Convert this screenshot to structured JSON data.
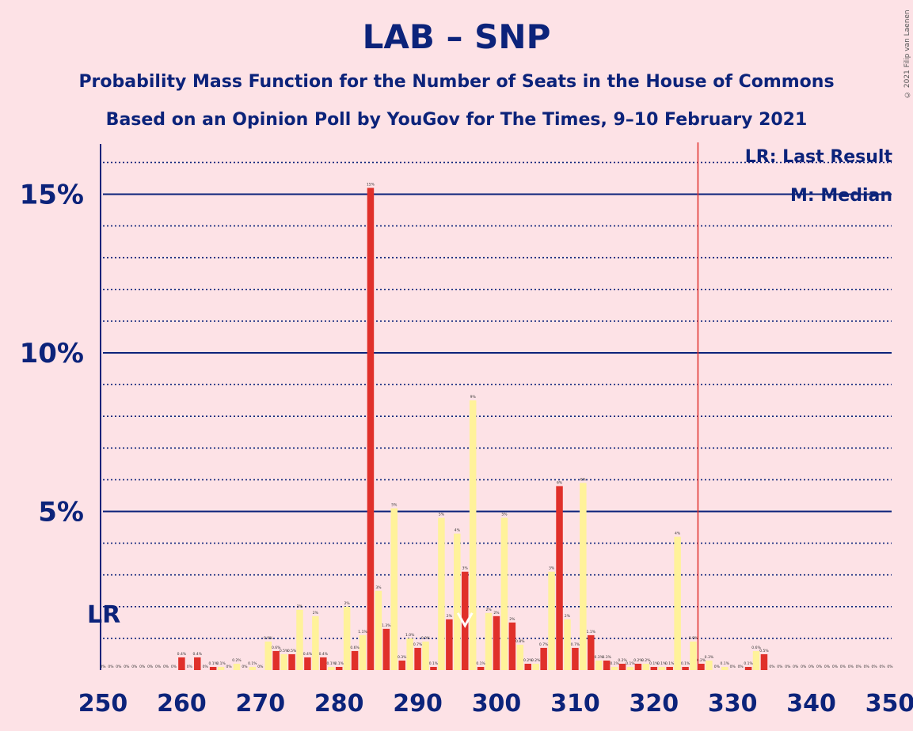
{
  "header": {
    "title": "LAB – SNP",
    "subtitle1": "Probability Mass Function for the Number of Seats in the House of Commons",
    "subtitle2": "Based on an Opinion Poll by YouGov for The Times, 9–10 February 2021"
  },
  "legend": {
    "lr": "LR: Last Result",
    "m": "M: Median"
  },
  "copyright": "© 2021 Filip van Laenen",
  "lr_label": "LR",
  "colors": {
    "background": "#fde2e6",
    "axis": "#0c237a",
    "lab": "#e0302a",
    "snp": "#fff29a",
    "lr_line": "#e0302a",
    "median": "#ffffff"
  },
  "chart_data": {
    "type": "bar",
    "title": "LAB – SNP",
    "x": [
      250,
      251,
      252,
      253,
      254,
      255,
      256,
      257,
      258,
      259,
      260,
      261,
      262,
      263,
      264,
      265,
      266,
      267,
      268,
      269,
      270,
      271,
      272,
      273,
      274,
      275,
      276,
      277,
      278,
      279,
      280,
      281,
      282,
      283,
      284,
      285,
      286,
      287,
      288,
      289,
      290,
      291,
      292,
      293,
      294,
      295,
      296,
      297,
      298,
      299,
      300,
      301,
      302,
      303,
      304,
      305,
      306,
      307,
      308,
      309,
      310,
      311,
      312,
      313,
      314,
      315,
      316,
      317,
      318,
      319,
      320,
      321,
      322,
      323,
      324,
      325,
      326,
      327,
      328,
      329,
      330,
      331,
      332,
      333,
      334,
      335,
      336,
      337,
      338,
      339,
      340,
      341,
      342,
      343,
      344,
      345,
      346,
      347,
      348,
      349,
      350
    ],
    "values": [
      0,
      0,
      0,
      0,
      0,
      0,
      0,
      0,
      0,
      0,
      0.4,
      0,
      0.4,
      0,
      0.1,
      0.1,
      0,
      0.2,
      0,
      0.1,
      0,
      0.9,
      0.6,
      0.5,
      0.5,
      1.9,
      0.4,
      1.7,
      0.4,
      0.1,
      0.1,
      2,
      0.6,
      1.1,
      15.2,
      2.5,
      1.3,
      5.1,
      0.3,
      1,
      0.7,
      0.9,
      0.1,
      4.8,
      1.6,
      4.3,
      3.1,
      8.5,
      0.1,
      1.8,
      1.7,
      4.8,
      1.5,
      0.8,
      0.2,
      0.2,
      0.7,
      3.1,
      5.8,
      1.6,
      0.7,
      5.9,
      1.1,
      0.3,
      0.3,
      0.1,
      0.2,
      0.1,
      0.2,
      0.2,
      0.1,
      0.1,
      0.1,
      4.2,
      0.1,
      0.9,
      0.2,
      0.3,
      0,
      0.1,
      0,
      0,
      0.1,
      0.6,
      0.5,
      0,
      0,
      0,
      0,
      0,
      0,
      0,
      0,
      0,
      0,
      0,
      0,
      0,
      0,
      0,
      0
    ],
    "value_labels": [
      "0%",
      "0%",
      "0%",
      "0%",
      "0%",
      "0%",
      "0%",
      "0%",
      "0%",
      "0%",
      "0.4%",
      "0%",
      "0.4%",
      "0%",
      "0.1%",
      "0.1%",
      "0%",
      "0.2%",
      "0%",
      "0.1%",
      "0%",
      "0.9%",
      "0.6%",
      "0.5%",
      "0.5%",
      "2%",
      "0.4%",
      "2%",
      "0.4%",
      "0.1%",
      "0.1%",
      "2%",
      "0.6%",
      "1.1%",
      "15%",
      "3%",
      "1.3%",
      "5%",
      "0.3%",
      "1.0%",
      "0.7%",
      "0.9%",
      "0.1%",
      "5%",
      "2%",
      "4%",
      "3%",
      "9%",
      "0.1%",
      "2%",
      "2%",
      "5%",
      "2%",
      "0.8%",
      "0.2%",
      "0.2%",
      "0.7%",
      "3%",
      "6%",
      "2%",
      "0.7%",
      "6%",
      "1.1%",
      "0.3%",
      "0.3%",
      "0.1%",
      "0.2%",
      "0.1%",
      "0.2%",
      "0.2%",
      "0.1%",
      "0.1%",
      "0.1%",
      "4%",
      "0.1%",
      "0.9%",
      "0.2%",
      "0.3%",
      "0%",
      "0.1%",
      "0%",
      "0%",
      "0.1%",
      "0.6%",
      "0.5%",
      "0%",
      "0%",
      "0%",
      "0%",
      "0%",
      "0%",
      "0%",
      "0%",
      "0%",
      "0%",
      "0%",
      "0%",
      "0%",
      "0%",
      "0%",
      "0%"
    ],
    "xlim": [
      250,
      350
    ],
    "ylim": [
      0,
      16.5
    ],
    "x_ticks": [
      "250",
      "260",
      "270",
      "280",
      "290",
      "300",
      "310",
      "320",
      "330",
      "340",
      "350"
    ],
    "y_ticks": [
      "5%",
      "10%",
      "15%"
    ],
    "last_result": 326,
    "median": 296,
    "grid": "major solid lines at 5% steps, dotted lines at 1% steps"
  }
}
